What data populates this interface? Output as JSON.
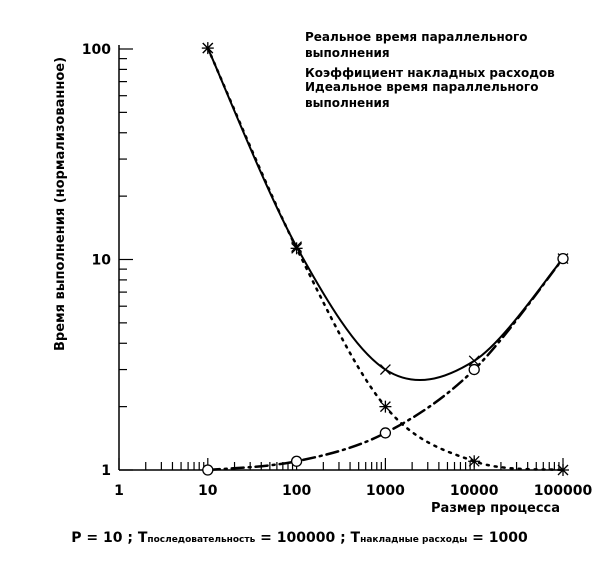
{
  "chart_data": {
    "type": "line",
    "xscale": "log",
    "yscale": "log",
    "xlabel": "Размер процесса",
    "ylabel": "Время выполнения (нормализованное)",
    "xlim": [
      1,
      100000
    ],
    "ylim": [
      1,
      100
    ],
    "x_ticks": [
      "1",
      "10",
      "100",
      "1000",
      "10000",
      "100000"
    ],
    "y_ticks": [
      "1",
      "10",
      "100"
    ],
    "grid": false,
    "legend_position": "top-right",
    "series": [
      {
        "name": "Реальное время параллельного выполнения",
        "marker": "x",
        "line": "solid",
        "x": [
          10,
          100,
          1000,
          10000,
          100000
        ],
        "y": [
          101,
          11.5,
          3,
          3.3,
          10.1
        ]
      },
      {
        "name": "Коэффициент накладных расходов",
        "marker": "asterisk",
        "line": "dotted",
        "x": [
          10,
          100,
          1000,
          10000,
          100000
        ],
        "y": [
          101,
          11.3,
          2,
          1.1,
          1
        ]
      },
      {
        "name": "Идеальное время параллельного выполнения",
        "marker": "circle",
        "line": "dashdot",
        "x": [
          10,
          100,
          1000,
          10000,
          100000
        ],
        "y": [
          1,
          1.1,
          1.5,
          3,
          10.1
        ]
      }
    ],
    "legend_lines": [
      [
        "Реальное время параллельного",
        "выполнения"
      ],
      [
        "Коэффициент накладных расходов"
      ],
      [
        "Идеальное время параллельного",
        "выполнения"
      ]
    ]
  },
  "caption": {
    "p_part": "P = 10 ; T",
    "seq_sub": "последовательность",
    "seq_val": " = 100000 ; T",
    "ovh_sub": "накладные расходы",
    "ovh_val": " = 1000"
  }
}
